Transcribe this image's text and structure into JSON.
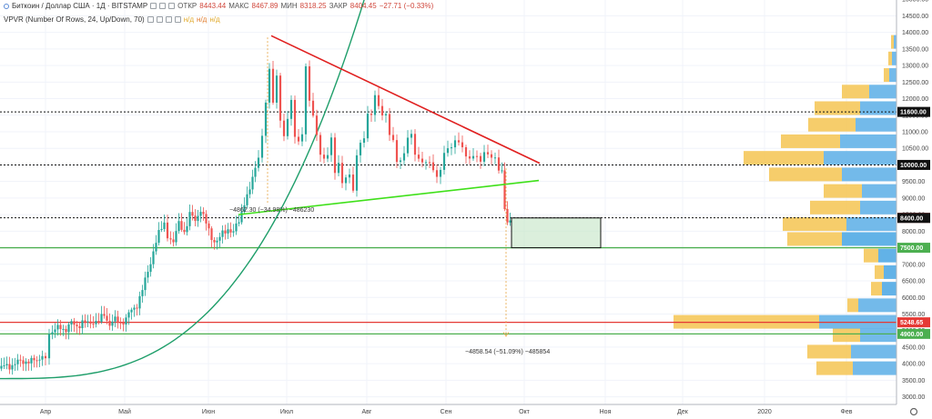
{
  "header": {
    "symbol": "Биткоин / Доллар США · 1Д · BITSTAMP",
    "open_label": "ОТКР",
    "open": "8443.44",
    "high_label": "МАКС",
    "high": "8467.89",
    "low_label": "МИН",
    "low": "8318.25",
    "close_label": "ЗАКР",
    "close": "8404.45",
    "change": "−27.71 (−0.33%)",
    "indicator": "VPVR (Number Of Rows, 24, Up/Down, 70)",
    "na1": "н/д",
    "na2": "н/д",
    "na3": "н/д"
  },
  "annotations": {
    "measure1": "−4862.30 (−34.98%) −486230",
    "measure2": "−4858.54 (−51.09%) −485854"
  },
  "colors": {
    "bull": "#26a69a",
    "bear": "#ef5350",
    "resistance": "#e02020",
    "support": "#3fe01a",
    "curve": "#1e9e6a",
    "level_red": "#e53935",
    "level_green": "#4caf50",
    "vp_up": "#5aaee6",
    "vp_down": "#f5c451"
  },
  "chart_data": {
    "type": "candlestick",
    "ylim": [
      2700,
      15100
    ],
    "x_ticks": [
      "Апр",
      "Май",
      "Июн",
      "Июл",
      "Авг",
      "Сен",
      "Окт",
      "Ноя",
      "Дек",
      "2020",
      "Фев"
    ],
    "y_ticks": [
      "3000.00",
      "3500.00",
      "4000.00",
      "4500.00",
      "5000.00",
      "5500.00",
      "6000.00",
      "6500.00",
      "7000.00",
      "7500.00",
      "8000.00",
      "8500.00",
      "9000.00",
      "9500.00",
      "10000.00",
      "10500.00",
      "11000.00",
      "11500.00",
      "12000.00",
      "12500.00",
      "13000.00",
      "13500.00",
      "14000.00",
      "14500.00",
      "15000.00"
    ],
    "price_labels": [
      {
        "text": "11600.00",
        "value": 11600,
        "color": "#111111",
        "line": "dotted"
      },
      {
        "text": "10000.00",
        "value": 10000,
        "color": "#111111",
        "line": "dotted"
      },
      {
        "text": "8404.45",
        "value": 8404.45,
        "color": "#ef5350",
        "line": "dotted"
      },
      {
        "text": "8400.00",
        "value": 8400,
        "color": "#111111",
        "line": "none"
      },
      {
        "text": "7500.00",
        "value": 7500,
        "color": "#4caf50",
        "line": "solid"
      },
      {
        "text": "5248.65",
        "value": 5248.65,
        "color": "#e53935",
        "line": "solid"
      },
      {
        "text": "4900.00",
        "value": 4900,
        "color": "#4caf50",
        "line": "solid"
      }
    ],
    "close_path": [
      [
        0,
        3850
      ],
      [
        6,
        3900
      ],
      [
        12,
        3950
      ],
      [
        18,
        4000
      ],
      [
        24,
        4050
      ],
      [
        30,
        4100
      ],
      [
        36,
        4050
      ],
      [
        42,
        4100
      ],
      [
        48,
        4300
      ],
      [
        52,
        4150
      ],
      [
        56,
        4950
      ],
      [
        62,
        5000
      ],
      [
        68,
        5100
      ],
      [
        74,
        5050
      ],
      [
        80,
        5200
      ],
      [
        86,
        5150
      ],
      [
        92,
        5250
      ],
      [
        98,
        5200
      ],
      [
        104,
        5300
      ],
      [
        110,
        5250
      ],
      [
        116,
        5500
      ],
      [
        122,
        5200
      ],
      [
        128,
        5300
      ],
      [
        134,
        5250
      ],
      [
        140,
        5350
      ],
      [
        146,
        5600
      ],
      [
        152,
        5800
      ],
      [
        158,
        6200
      ],
      [
        164,
        6800
      ],
      [
        170,
        7400
      ],
      [
        176,
        7900
      ],
      [
        182,
        8300
      ],
      [
        186,
        7900
      ],
      [
        192,
        7700
      ],
      [
        198,
        8200
      ],
      [
        204,
        8000
      ],
      [
        210,
        8500
      ],
      [
        216,
        8300
      ],
      [
        222,
        8700
      ],
      [
        228,
        8200
      ],
      [
        234,
        7800
      ],
      [
        240,
        7700
      ],
      [
        246,
        7900
      ],
      [
        252,
        8100
      ],
      [
        258,
        7950
      ],
      [
        264,
        8300
      ],
      [
        270,
        8900
      ],
      [
        276,
        9200
      ],
      [
        282,
        10000
      ],
      [
        286,
        10500
      ],
      [
        290,
        11000
      ],
      [
        294,
        11800
      ],
      [
        298,
        12900
      ],
      [
        302,
        11500
      ],
      [
        306,
        12600
      ],
      [
        310,
        11000
      ],
      [
        314,
        10800
      ],
      [
        318,
        11400
      ],
      [
        322,
        12000
      ],
      [
        326,
        11200
      ],
      [
        330,
        10800
      ],
      [
        334,
        11300
      ],
      [
        338,
        13000
      ],
      [
        342,
        12000
      ],
      [
        346,
        11400
      ],
      [
        350,
        10600
      ],
      [
        354,
        10200
      ],
      [
        358,
        9800
      ],
      [
        362,
        10300
      ],
      [
        366,
        10700
      ],
      [
        370,
        9900
      ],
      [
        374,
        10300
      ],
      [
        378,
        9600
      ],
      [
        382,
        10000
      ],
      [
        386,
        9700
      ],
      [
        390,
        9400
      ],
      [
        394,
        10100
      ],
      [
        398,
        10500
      ],
      [
        402,
        10600
      ],
      [
        406,
        11200
      ],
      [
        410,
        11500
      ],
      [
        414,
        11900
      ],
      [
        418,
        12000
      ],
      [
        422,
        11600
      ],
      [
        426,
        11800
      ],
      [
        430,
        11200
      ],
      [
        434,
        10800
      ],
      [
        438,
        10300
      ],
      [
        442,
        9900
      ],
      [
        446,
        10300
      ],
      [
        450,
        10500
      ],
      [
        454,
        10700
      ],
      [
        458,
        10200
      ],
      [
        462,
        10000
      ],
      [
        466,
        10300
      ],
      [
        470,
        10100
      ],
      [
        474,
        10200
      ],
      [
        478,
        9900
      ],
      [
        482,
        9700
      ],
      [
        486,
        9900
      ],
      [
        490,
        10300
      ],
      [
        494,
        10500
      ],
      [
        498,
        10400
      ],
      [
        502,
        10700
      ],
      [
        506,
        10600
      ],
      [
        510,
        10500
      ],
      [
        514,
        10300
      ],
      [
        518,
        10200
      ],
      [
        522,
        10400
      ],
      [
        526,
        10300
      ],
      [
        530,
        10200
      ],
      [
        534,
        10400
      ],
      [
        538,
        10300
      ],
      [
        542,
        10200
      ],
      [
        546,
        10100
      ],
      [
        550,
        9800
      ],
      [
        553,
        9700
      ],
      [
        556,
        8700
      ],
      [
        559,
        8300
      ],
      [
        562,
        8404
      ]
    ]
  },
  "volume_profile": [
    {
      "price": 3850,
      "up": 48,
      "down": 40
    },
    {
      "price": 4350,
      "up": 50,
      "down": 48
    },
    {
      "price": 4850,
      "up": 40,
      "down": 30
    },
    {
      "price": 5250,
      "up": 85,
      "down": 160
    },
    {
      "price": 5750,
      "up": 42,
      "down": 12
    },
    {
      "price": 6250,
      "up": 16,
      "down": 12
    },
    {
      "price": 6750,
      "up": 14,
      "down": 10
    },
    {
      "price": 7250,
      "up": 20,
      "down": 16
    },
    {
      "price": 7750,
      "up": 60,
      "down": 60
    },
    {
      "price": 8200,
      "up": 55,
      "down": 70
    },
    {
      "price": 8700,
      "up": 40,
      "down": 55
    },
    {
      "price": 9200,
      "up": 38,
      "down": 42
    },
    {
      "price": 9700,
      "up": 60,
      "down": 80
    },
    {
      "price": 10200,
      "up": 80,
      "down": 88
    },
    {
      "price": 10700,
      "up": 62,
      "down": 65
    },
    {
      "price": 11200,
      "up": 45,
      "down": 52
    },
    {
      "price": 11700,
      "up": 40,
      "down": 50
    },
    {
      "price": 12200,
      "up": 30,
      "down": 30
    },
    {
      "price": 12700,
      "up": 8,
      "down": 6
    },
    {
      "price": 13200,
      "up": 5,
      "down": 4
    },
    {
      "price": 13700,
      "up": 3,
      "down": 3
    }
  ]
}
